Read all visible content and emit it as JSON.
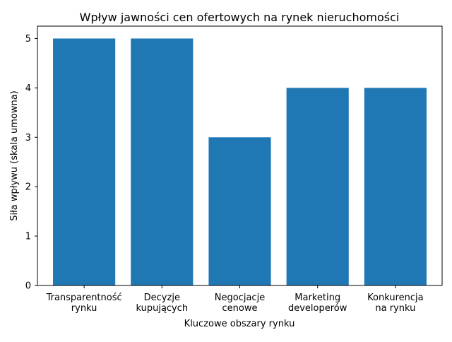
{
  "chart_data": {
    "type": "bar",
    "title": "Wpływ jawności cen ofertowych na rynek nieruchomości",
    "xlabel": "Kluczowe obszary rynku",
    "ylabel": "Siła wpływu (skala umowna)",
    "categories": [
      [
        "Transparentność",
        "rynku"
      ],
      [
        "Decyzje",
        "kupujących"
      ],
      [
        "Negocjacje",
        "cenowe"
      ],
      [
        "Marketing",
        "developerów"
      ],
      [
        "Konkurencja",
        "na rynku"
      ]
    ],
    "values": [
      5,
      5,
      3,
      4,
      4
    ],
    "ylim": [
      0,
      5.25
    ],
    "yticks": [
      0,
      1,
      2,
      3,
      4,
      5
    ],
    "bar_color": "#1f77b4",
    "grid": false,
    "legend": "none"
  }
}
